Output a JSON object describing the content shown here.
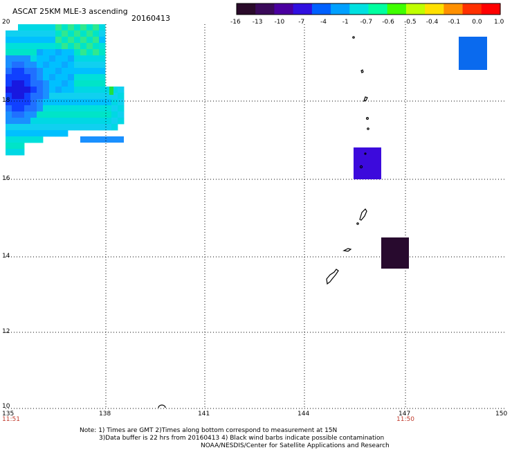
{
  "header": {
    "title": "ASCAT 25KM MLE-3 ascending",
    "date": "20160413"
  },
  "colorbar": {
    "labels": [
      "-16",
      "-13",
      "-10",
      "-7",
      "-4",
      "-1",
      "-0.7",
      "-0.6",
      "-0.5",
      "-0.4",
      "-0.1",
      "0.0",
      "1.0"
    ],
    "colors": [
      "#2a0a2a",
      "#3a0a5a",
      "#4a00a0",
      "#3010e0",
      "#0060ff",
      "#00a0ff",
      "#00e0e0",
      "#00ffa0",
      "#40ff00",
      "#c0ff00",
      "#ffe000",
      "#ff9000",
      "#ff3000",
      "#ff0000"
    ]
  },
  "map": {
    "lat_labels": [
      "20",
      "18",
      "16",
      "14",
      "12",
      "10"
    ],
    "lon_labels": [
      "135",
      "138",
      "141",
      "144",
      "147",
      "150"
    ],
    "time_left": "11:51",
    "time_right": "11:50"
  },
  "notes": {
    "line1": "Note: 1) Times are GMT 2)Times along bottom correspond to measurement at 15N",
    "line2": "3)Data buffer is 22 hrs from 20160413 4) Black wind barbs indicate possible contamination",
    "line3": "NOAA/NESDIS/Center for Satellite Applications and Research"
  },
  "patches": [
    {
      "name": "data-patch-northeast",
      "color": "#0a6aee"
    },
    {
      "name": "data-patch-center",
      "color": "#3c0adc"
    },
    {
      "name": "data-patch-southeast",
      "color": "#280a2e"
    }
  ]
}
